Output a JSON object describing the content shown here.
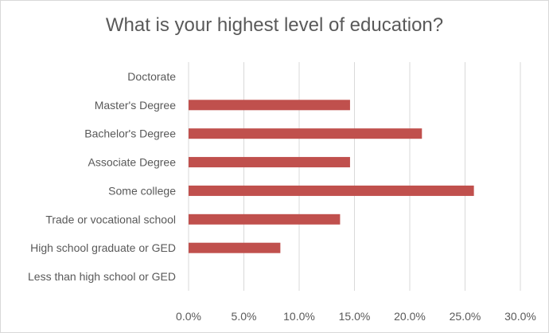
{
  "chart_data": {
    "type": "bar",
    "orientation": "horizontal",
    "title": "What is your highest level of education?",
    "categories": [
      "Doctorate",
      "Master's Degree",
      "Bachelor's Degree",
      "Associate Degree",
      "Some college",
      "Trade or vocational school",
      "High school graduate or GED",
      "Less than high school or GED"
    ],
    "values": [
      0.0,
      14.6,
      21.1,
      14.6,
      25.8,
      13.7,
      8.3,
      0.0
    ],
    "xlim": [
      0,
      30
    ],
    "xticks": [
      "0.0%",
      "5.0%",
      "10.0%",
      "15.0%",
      "20.0%",
      "25.0%",
      "30.0%"
    ],
    "xtick_values": [
      0,
      5,
      10,
      15,
      20,
      25,
      30
    ],
    "bar_color": "#c0504d",
    "grid_color": "#d9d9d9",
    "grid": true,
    "legend": "none"
  }
}
